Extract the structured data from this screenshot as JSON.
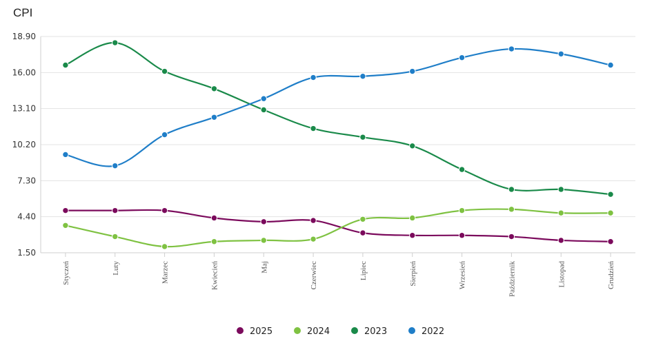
{
  "chart_data": {
    "type": "line",
    "title": "CPI",
    "xlabel": "",
    "ylabel": "",
    "ylim": [
      1.5,
      18.9
    ],
    "yticks": [
      "18.90",
      "16.00",
      "13.10",
      "10.20",
      "7.30",
      "4.40",
      "1.50"
    ],
    "categories": [
      "Styczeń",
      "Luty",
      "Marzec",
      "Kwiecień",
      "Maj",
      "Czerwiec",
      "Lipiec",
      "Sierpień",
      "Wrzesień",
      "Październik",
      "Listopad",
      "Grudzień"
    ],
    "series": [
      {
        "name": "2025",
        "color": "#7b0a5c",
        "values": [
          4.9,
          4.9,
          4.9,
          4.3,
          4.0,
          4.1,
          3.1,
          2.9,
          2.9,
          2.8,
          2.5,
          2.4
        ]
      },
      {
        "name": "2024",
        "color": "#7fc242",
        "values": [
          3.7,
          2.8,
          2.0,
          2.4,
          2.5,
          2.6,
          4.2,
          4.3,
          4.9,
          5.0,
          4.7,
          4.7
        ]
      },
      {
        "name": "2023",
        "color": "#1a8a4a",
        "values": [
          16.6,
          18.4,
          16.1,
          14.7,
          13.0,
          11.5,
          10.8,
          10.1,
          8.2,
          6.6,
          6.6,
          6.2
        ]
      },
      {
        "name": "2022",
        "color": "#1f7ec8",
        "values": [
          9.4,
          8.5,
          11.0,
          12.4,
          13.9,
          15.6,
          15.7,
          16.1,
          17.2,
          17.9,
          17.5,
          16.6
        ]
      }
    ],
    "legend_position": "bottom-center",
    "grid": true
  }
}
